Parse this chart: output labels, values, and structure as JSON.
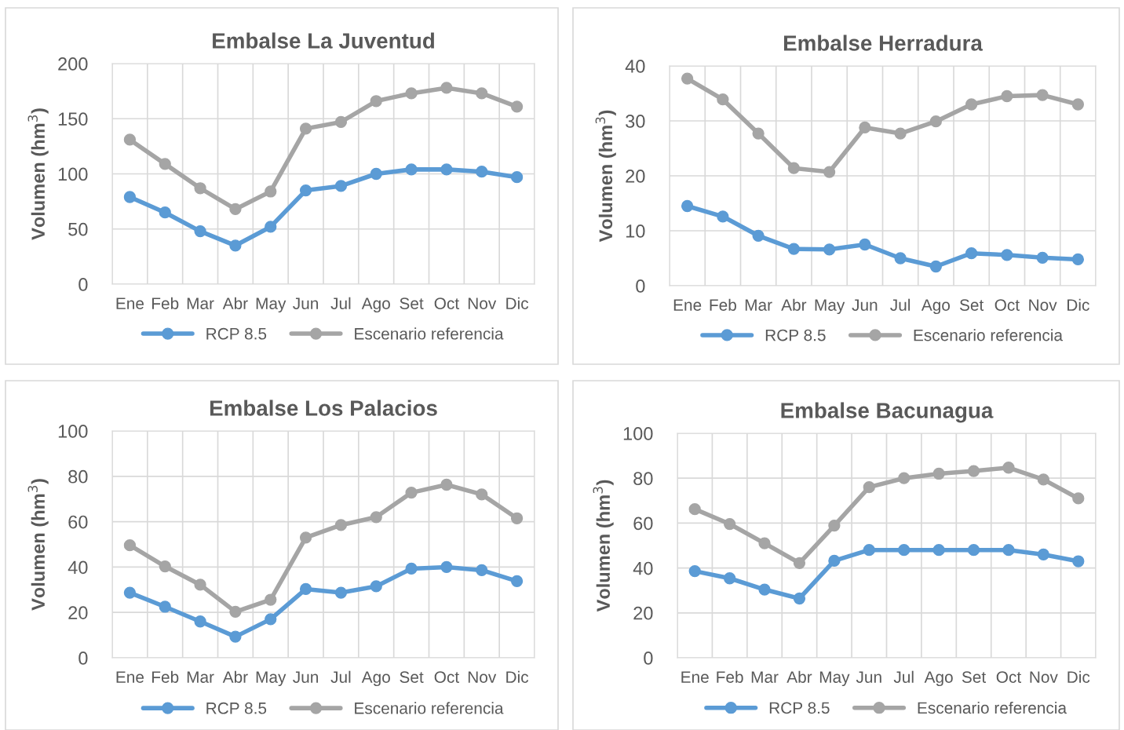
{
  "chart_data": [
    {
      "type": "line",
      "title": "Embalse La Juventud",
      "ylabel": "Volumen (hm$^{3}$)",
      "categories": [
        "Ene",
        "Feb",
        "Mar",
        "Abr",
        "May",
        "Jun",
        "Jul",
        "Ago",
        "Set",
        "Oct",
        "Nov",
        "Dic"
      ],
      "ylim": [
        0,
        200
      ],
      "yticks": [
        0,
        50,
        100,
        150,
        200
      ],
      "grid": true,
      "legend": "bottom",
      "marker": "circle",
      "series": [
        {
          "name": "RCP 8.5",
          "color": "#5b9bd5",
          "values": [
            79,
            65,
            48,
            35,
            52,
            85,
            89,
            100,
            104,
            104,
            102,
            97
          ]
        },
        {
          "name": "Escenario referencia",
          "color": "#a5a5a5",
          "values": [
            131,
            109,
            87,
            68,
            84,
            141,
            147,
            166,
            173,
            178,
            173,
            161
          ]
        }
      ]
    },
    {
      "type": "line",
      "title": "Embalse Herradura",
      "ylabel": "Volumen (hm$^{3}$)",
      "categories": [
        "Ene",
        "Feb",
        "Mar",
        "Abr",
        "May",
        "Jun",
        "Jul",
        "Ago",
        "Set",
        "Oct",
        "Nov",
        "Dic"
      ],
      "ylim": [
        0,
        40
      ],
      "yticks": [
        0,
        10,
        20,
        30,
        40
      ],
      "grid": true,
      "legend": "bottom",
      "marker": "circle",
      "series": [
        {
          "name": "RCP 8.5",
          "color": "#5b9bd5",
          "values": [
            14.5,
            12.6,
            9.1,
            6.7,
            6.6,
            7.5,
            5,
            3.5,
            5.9,
            5.6,
            5.1,
            4.8
          ]
        },
        {
          "name": "Escenario referencia",
          "color": "#a5a5a5",
          "values": [
            37.7,
            33.9,
            27.7,
            21.4,
            20.7,
            28.8,
            27.7,
            29.9,
            33,
            34.5,
            34.7,
            33
          ]
        }
      ]
    },
    {
      "type": "line",
      "title": "Embalse Los Palacios",
      "ylabel": "Volumen (hm$^{3}$)",
      "categories": [
        "Ene",
        "Feb",
        "Mar",
        "Abr",
        "May",
        "Jun",
        "Jul",
        "Ago",
        "Set",
        "Oct",
        "Nov",
        "Dic"
      ],
      "ylim": [
        0,
        100
      ],
      "yticks": [
        0,
        20,
        40,
        60,
        80,
        100
      ],
      "grid": true,
      "legend": "bottom",
      "marker": "circle",
      "series": [
        {
          "name": "RCP 8.5",
          "color": "#5b9bd5",
          "values": [
            28.7,
            22.5,
            16,
            9.3,
            17,
            30.3,
            28.7,
            31.5,
            39.3,
            40,
            38.6,
            33.8
          ]
        },
        {
          "name": "Escenario referencia",
          "color": "#a5a5a5",
          "values": [
            49.6,
            40.3,
            32.2,
            20.3,
            25.6,
            53,
            58.5,
            62,
            72.8,
            76.3,
            72,
            61.5
          ]
        }
      ]
    },
    {
      "type": "line",
      "title": "Embalse Bacunagua",
      "ylabel": "Volumen (hm$^{3}$)",
      "categories": [
        "Ene",
        "Feb",
        "Mar",
        "Abr",
        "May",
        "Jun",
        "Jul",
        "Ago",
        "Set",
        "Oct",
        "Nov",
        "Dic"
      ],
      "ylim": [
        0,
        100
      ],
      "yticks": [
        0,
        20,
        40,
        60,
        80,
        100
      ],
      "grid": true,
      "legend": "bottom",
      "marker": "circle",
      "series": [
        {
          "name": "RCP 8.5",
          "color": "#5b9bd5",
          "values": [
            38.6,
            35.4,
            30.4,
            26.4,
            43.2,
            48,
            48,
            48,
            48,
            48,
            46,
            43
          ]
        },
        {
          "name": "Escenario referencia",
          "color": "#a5a5a5",
          "values": [
            66.2,
            59.6,
            51,
            42.2,
            58.9,
            76,
            80,
            82,
            83.2,
            84.7,
            79.4,
            71
          ]
        }
      ]
    }
  ]
}
